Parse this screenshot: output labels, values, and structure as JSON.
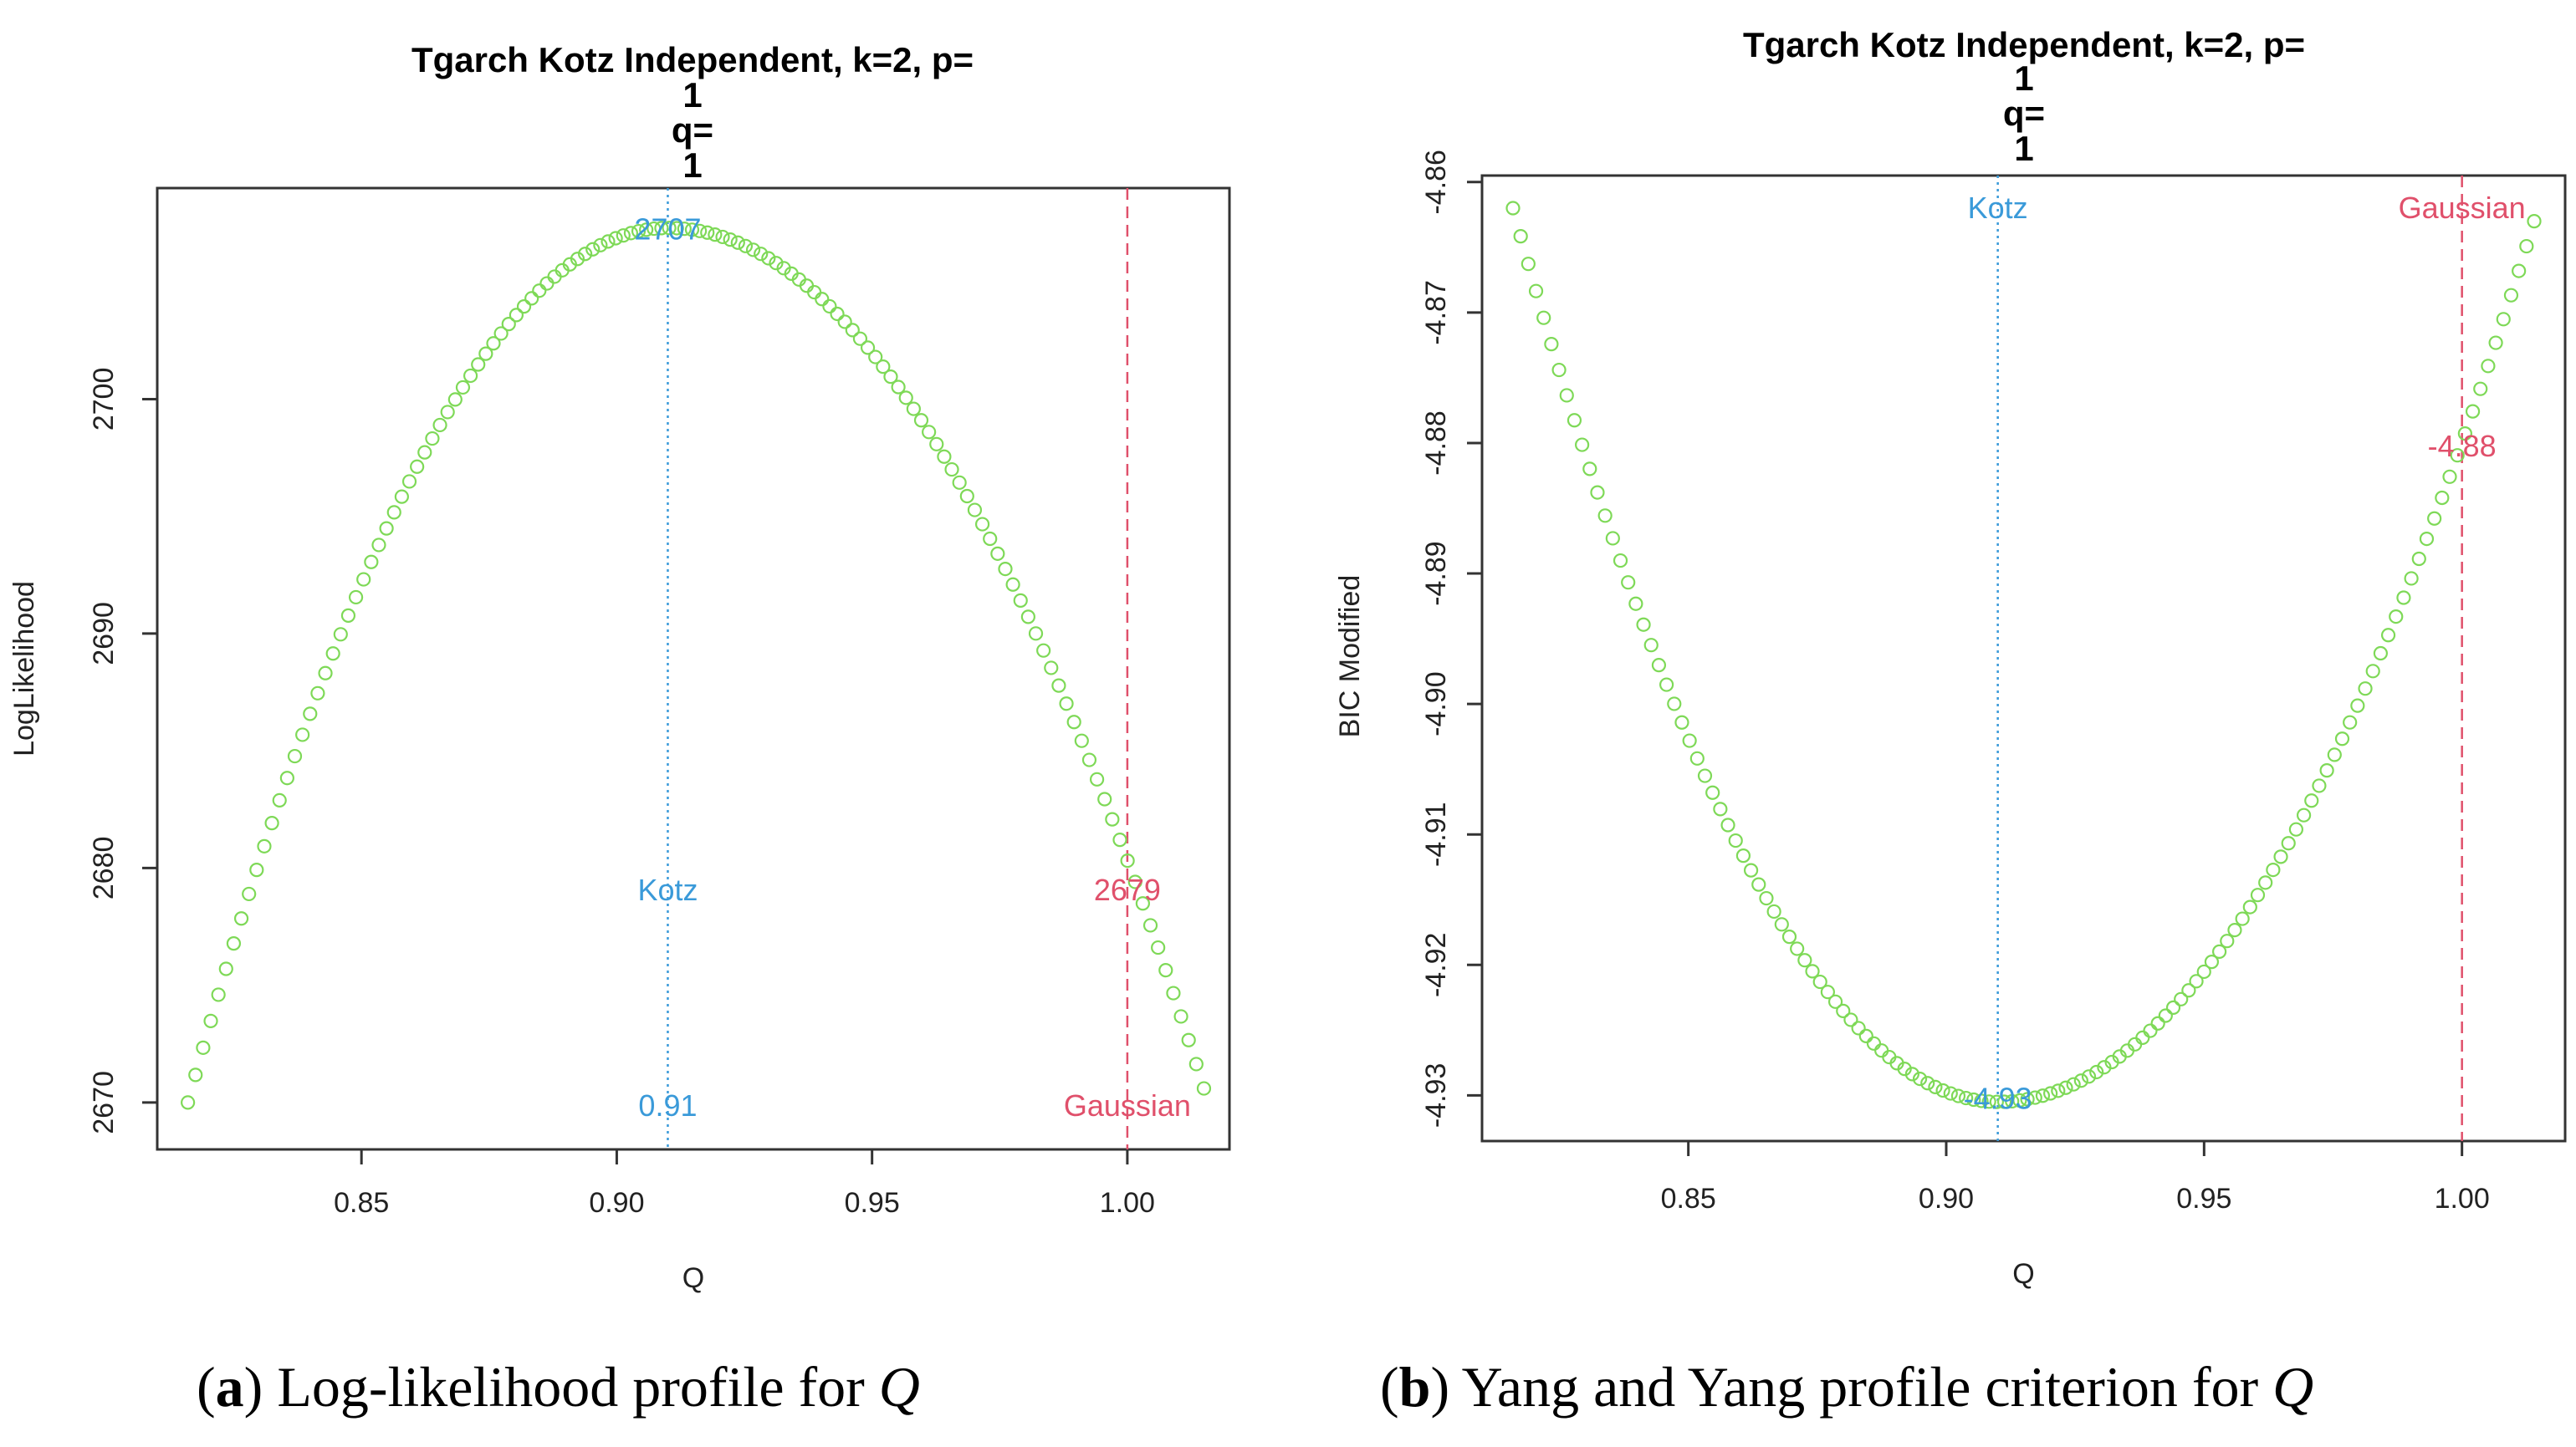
{
  "chart_data": [
    {
      "type": "scatter",
      "title_lines": [
        "Tgarch Kotz Independent, k=2, p=",
        "1",
        "q=",
        "1"
      ],
      "xlabel": "Q",
      "ylabel": "LogLikelihood",
      "xlim": [
        0.81,
        1.02
      ],
      "ylim": [
        2668,
        2709
      ],
      "xticks": [
        "0.85",
        "0.90",
        "0.95",
        "1.00"
      ],
      "yticks": [
        "2670",
        "2680",
        "2690",
        "2700"
      ],
      "marker_color": "#7ed957",
      "curve": {
        "x_start": 0.816,
        "x_end": 1.015,
        "n": 134,
        "vertex_x": 0.91,
        "vertex_y": 2707.3,
        "left_end_y": 2670.0,
        "right_end_y": 2670.6
      },
      "lines": [
        {
          "name": "Kotz",
          "x": 0.91,
          "style": "dotted",
          "color": "#3a9ad9"
        },
        {
          "name": "Gaussian",
          "x": 1.0,
          "style": "dashed",
          "color": "#e0506b"
        }
      ],
      "annotations": [
        {
          "text": "2707",
          "x": 0.91,
          "y": 2707.3,
          "color": "#3a9ad9"
        },
        {
          "text": "Kotz",
          "x": 0.91,
          "y": 2679.2,
          "color": "#3a9ad9"
        },
        {
          "text": "0.91",
          "x": 0.91,
          "y": 2670.0,
          "color": "#3a9ad9"
        },
        {
          "text": "2679",
          "x": 1.0,
          "y": 2679.2,
          "color": "#e0506b"
        },
        {
          "text": "Gaussian",
          "x": 1.0,
          "y": 2670.0,
          "color": "#e0506b"
        }
      ]
    },
    {
      "type": "scatter",
      "title_lines": [
        "Tgarch Kotz Independent, k=2, p=",
        "1",
        "q=",
        "1"
      ],
      "xlabel": "Q",
      "ylabel": "BIC Modified",
      "xlim": [
        0.81,
        1.02
      ],
      "ylim": [
        -4.9335,
        -4.8595
      ],
      "xticks": [
        "0.85",
        "0.90",
        "0.95",
        "1.00"
      ],
      "yticks": [
        "-4.86",
        "-4.87",
        "-4.88",
        "-4.89",
        "-4.90",
        "-4.91",
        "-4.92",
        "-4.93"
      ],
      "marker_color": "#7ed957",
      "curve": {
        "x_start": 0.816,
        "x_end": 1.014,
        "n": 134,
        "vertex_x": 0.91,
        "vertex_y": -4.9305,
        "left_end_y": -4.862,
        "right_end_y": -4.863
      },
      "lines": [
        {
          "name": "Kotz",
          "x": 0.91,
          "style": "dotted",
          "color": "#3a9ad9"
        },
        {
          "name": "Gaussian",
          "x": 1.0,
          "style": "dashed",
          "color": "#e0506b"
        }
      ],
      "annotations": [
        {
          "text": "Kotz",
          "x": 0.91,
          "y": -4.8615,
          "color": "#3a9ad9"
        },
        {
          "text": "-4.93",
          "x": 0.91,
          "y": -4.93,
          "color": "#3a9ad9"
        },
        {
          "text": "Gaussian",
          "x": 1.0,
          "y": -4.8615,
          "color": "#e0506b"
        },
        {
          "text": "-4.88",
          "x": 1.0,
          "y": -4.88,
          "color": "#e0506b"
        }
      ]
    }
  ],
  "captions": [
    {
      "label": "a",
      "text": "Log-likelihood profile for ",
      "var": "Q"
    },
    {
      "label": "b",
      "text": "Yang and Yang profile criterion for ",
      "var": "Q"
    }
  ]
}
